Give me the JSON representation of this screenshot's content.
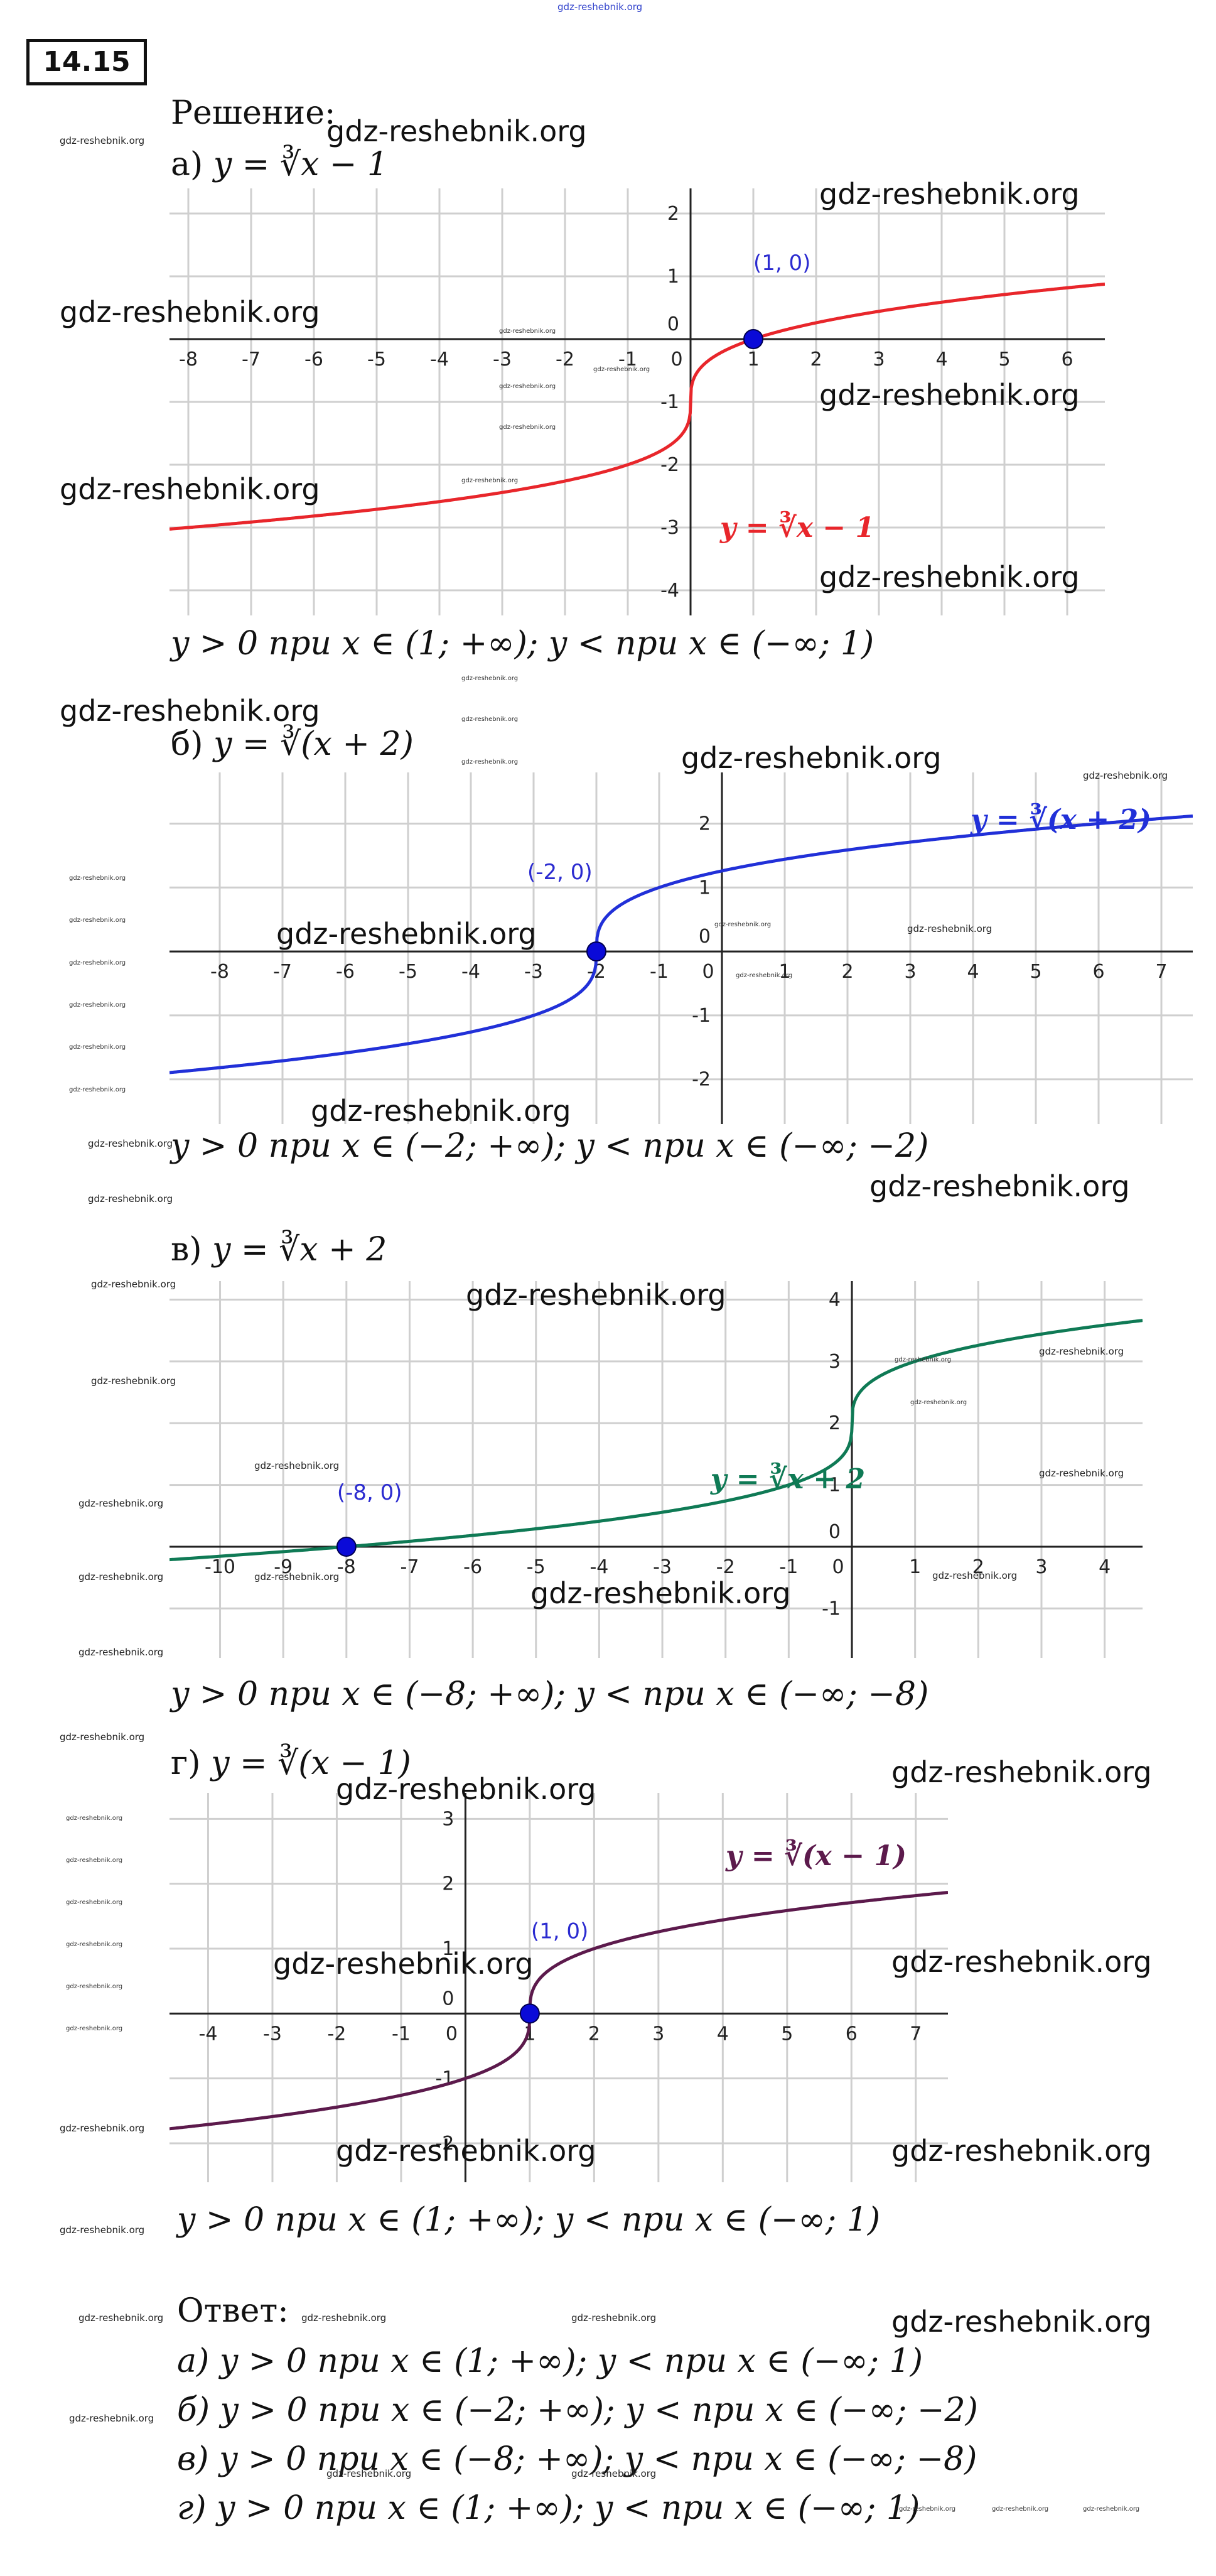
{
  "header": {
    "site_watermark": "gdz-reshebnik.org",
    "task_number": "14.15",
    "solution_label": "Решение:"
  },
  "watermark": "gdz-reshebnik.org",
  "parts": [
    {
      "label": "а)",
      "formula": "y = ∛x − 1",
      "conclusion": "y > 0 при x ∈ (1; +∞); y < при x ∈ (−∞; 1)",
      "graph_label": "y = ∛x − 1",
      "point_label": "(1, 0)",
      "color": "#e8262b"
    },
    {
      "label": "б)",
      "formula": "y = ∛(x + 2)",
      "conclusion": "y > 0 при x ∈ (−2; +∞); y < при x ∈ (−∞; −2)",
      "graph_label": "y = ∛(x + 2)",
      "point_label": "(-2, 0)",
      "color": "#2130d8"
    },
    {
      "label": "в)",
      "formula": "y = ∛x + 2",
      "conclusion": "y > 0 при x ∈ (−8; +∞); y < при x ∈ (−∞; −8)",
      "graph_label": "y = ∛x + 2",
      "point_label": "(-8, 0)",
      "color": "#0f7a55"
    },
    {
      "label": "г)",
      "formula": "y = ∛(x − 1)",
      "conclusion": "y > 0 при x ∈ (1; +∞); y < при x ∈ (−∞; 1)",
      "graph_label": "y = ∛(x − 1)",
      "point_label": "(1, 0)",
      "color": "#5c1a4c"
    }
  ],
  "answer": {
    "label": "Ответ:",
    "lines": [
      "а) y > 0 при x ∈ (1; +∞); y < при x ∈ (−∞; 1)",
      "б) y > 0 при x ∈ (−2; +∞); y < при x ∈ (−∞; −2)",
      "в) y > 0 при x ∈ (−8; +∞); y < при x ∈ (−∞; −8)",
      "г) y > 0 при x ∈ (1; +∞); y < при x ∈ (−∞; 1)"
    ]
  },
  "chart_data": [
    {
      "type": "line",
      "function": "cbrt(x) - 1",
      "xlim": [
        -8.3,
        6.6
      ],
      "ylim": [
        -4.4,
        2.4
      ],
      "x_ticks": [
        -8,
        -7,
        -6,
        -5,
        -4,
        -3,
        -2,
        -1,
        0,
        1,
        2,
        3,
        4,
        5,
        6
      ],
      "y_ticks": [
        -4,
        -3,
        -2,
        -1,
        0,
        1,
        2
      ],
      "grid": true,
      "highlight_point": [
        1,
        0
      ],
      "series": [
        {
          "name": "y = ∛x − 1",
          "x": [
            -8,
            -4,
            -1,
            0,
            1,
            2,
            4,
            6
          ],
          "y": [
            -3,
            -2.587,
            -2,
            -1,
            0,
            0.26,
            0.587,
            0.817
          ]
        }
      ]
    },
    {
      "type": "line",
      "function": "cbrt(x + 2)",
      "xlim": [
        -8.8,
        7.5
      ],
      "ylim": [
        -2.7,
        2.8
      ],
      "x_ticks": [
        -8,
        -7,
        -6,
        -5,
        -4,
        -3,
        -2,
        -1,
        0,
        1,
        2,
        3,
        4,
        5,
        6,
        7
      ],
      "y_ticks": [
        -2,
        -1,
        0,
        1,
        2
      ],
      "grid": true,
      "highlight_point": [
        -2,
        0
      ],
      "series": [
        {
          "name": "y = ∛(x + 2)",
          "x": [
            -8.8,
            -6,
            -3,
            -2,
            -1,
            0,
            2,
            6,
            7.5
          ],
          "y": [
            -1.894,
            -1.587,
            -1,
            0,
            1,
            1.26,
            1.587,
            2,
            2.117
          ]
        }
      ]
    },
    {
      "type": "line",
      "function": "cbrt(x) + 2",
      "xlim": [
        -10.8,
        4.6
      ],
      "ylim": [
        -1.8,
        4.3
      ],
      "x_ticks": [
        -10,
        -9,
        -8,
        -7,
        -6,
        -5,
        -4,
        -3,
        -2,
        -1,
        0,
        1,
        2,
        3,
        4
      ],
      "y_ticks": [
        -1,
        0,
        1,
        2,
        3,
        4
      ],
      "grid": true,
      "highlight_point": [
        -8,
        0
      ],
      "series": [
        {
          "name": "y = ∛x + 2",
          "x": [
            -10.8,
            -8,
            -1,
            0,
            1,
            4.6
          ],
          "y": [
            -0.211,
            0,
            1,
            2,
            3,
            3.663
          ]
        }
      ]
    },
    {
      "type": "line",
      "function": "cbrt(x - 1)",
      "xlim": [
        -4.6,
        7.5
      ],
      "ylim": [
        -2.6,
        3.4
      ],
      "x_ticks": [
        -4,
        -3,
        -2,
        -1,
        0,
        1,
        2,
        3,
        4,
        5,
        6,
        7
      ],
      "y_ticks": [
        -2,
        -1,
        0,
        1,
        2,
        3
      ],
      "grid": true,
      "highlight_point": [
        1,
        0
      ],
      "series": [
        {
          "name": "y = ∛(x − 1)",
          "x": [
            -4.6,
            -2,
            0,
            1,
            2,
            5,
            7.5
          ],
          "y": [
            -1.776,
            -1.442,
            -1,
            0,
            1,
            1.587,
            1.866
          ]
        }
      ]
    }
  ]
}
